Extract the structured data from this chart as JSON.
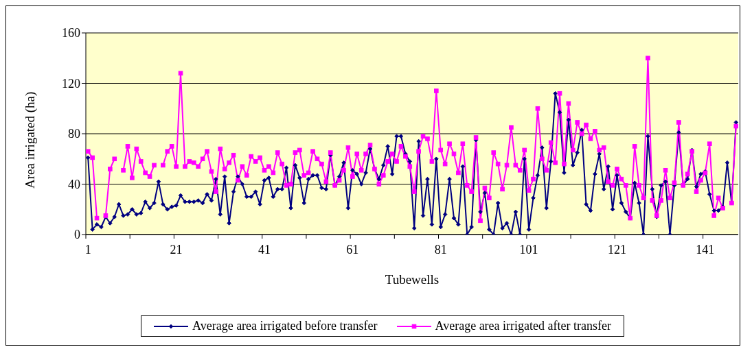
{
  "chart_data": {
    "type": "line",
    "xlabel": "Tubewells",
    "ylabel": "Area irrigated (ha)",
    "x": [
      1,
      2,
      3,
      4,
      5,
      6,
      7,
      8,
      9,
      10,
      11,
      12,
      13,
      14,
      15,
      16,
      17,
      18,
      19,
      20,
      21,
      22,
      23,
      24,
      25,
      26,
      27,
      28,
      29,
      30,
      31,
      32,
      33,
      34,
      35,
      36,
      37,
      38,
      39,
      40,
      41,
      42,
      43,
      44,
      45,
      46,
      47,
      48,
      49,
      50,
      51,
      52,
      53,
      54,
      55,
      56,
      57,
      58,
      59,
      60,
      61,
      62,
      63,
      64,
      65,
      66,
      67,
      68,
      69,
      70,
      71,
      72,
      73,
      74,
      75,
      76,
      77,
      78,
      79,
      80,
      81,
      82,
      83,
      84,
      85,
      86,
      87,
      88,
      89,
      90,
      91,
      92,
      93,
      94,
      95,
      96,
      97,
      98,
      99,
      100,
      101,
      102,
      103,
      104,
      105,
      106,
      107,
      108,
      109,
      110,
      111,
      112,
      113,
      114,
      115,
      116,
      117,
      118,
      119,
      120,
      121,
      122,
      123,
      124,
      125,
      126,
      127,
      128,
      129,
      130,
      131,
      132,
      133,
      134,
      135,
      136,
      137,
      138,
      139,
      140,
      141,
      142,
      143,
      144,
      145,
      146,
      147,
      148
    ],
    "series": [
      {
        "name": "Average area irrigated before transfer",
        "color": "#000080",
        "marker": "diamond",
        "values": [
          61,
          4,
          8,
          6,
          14,
          9,
          14,
          24,
          15,
          16,
          20,
          16,
          17,
          26,
          21,
          25,
          42,
          24,
          20,
          22,
          23,
          31,
          26,
          26,
          26,
          27,
          25,
          32,
          27,
          44,
          16,
          46,
          9,
          34,
          46,
          40,
          30,
          30,
          34,
          24,
          43,
          45,
          30,
          36,
          36,
          53,
          21,
          55,
          45,
          25,
          44,
          47,
          47,
          37,
          36,
          63,
          39,
          46,
          57,
          21,
          51,
          48,
          40,
          49,
          68,
          52,
          44,
          55,
          70,
          48,
          78,
          78,
          64,
          58,
          5,
          74,
          15,
          44,
          8,
          60,
          6,
          16,
          44,
          13,
          8,
          54,
          0,
          6,
          75,
          18,
          33,
          4,
          0,
          25,
          5,
          9,
          0,
          18,
          0,
          60,
          4,
          29,
          47,
          69,
          21,
          58,
          112,
          97,
          49,
          91,
          55,
          65,
          83,
          24,
          19,
          48,
          64,
          36,
          54,
          20,
          47,
          25,
          18,
          13,
          41,
          25,
          0,
          78,
          36,
          14,
          39,
          42,
          0,
          39,
          81,
          39,
          44,
          67,
          38,
          48,
          50,
          32,
          19,
          19,
          22,
          57,
          25,
          89
        ]
      },
      {
        "name": "Average area irrigated after transfer",
        "color": "#ff00ff",
        "marker": "square",
        "values": [
          66,
          61,
          13,
          null,
          15,
          52,
          60,
          null,
          51,
          70,
          45,
          68,
          58,
          49,
          46,
          55,
          null,
          55,
          66,
          70,
          54,
          128,
          54,
          58,
          57,
          54,
          60,
          66,
          50,
          34,
          68,
          52,
          57,
          63,
          43,
          54,
          47,
          62,
          58,
          61,
          51,
          54,
          49,
          65,
          56,
          39,
          40,
          65,
          67,
          47,
          49,
          66,
          60,
          56,
          42,
          65,
          39,
          43,
          51,
          69,
          46,
          64,
          51,
          64,
          71,
          52,
          40,
          47,
          58,
          64,
          58,
          70,
          62,
          54,
          34,
          66,
          78,
          76,
          58,
          114,
          67,
          56,
          72,
          64,
          49,
          72,
          39,
          34,
          77,
          11,
          37,
          29,
          65,
          56,
          36,
          55,
          85,
          55,
          51,
          67,
          35,
          44,
          100,
          60,
          51,
          73,
          57,
          112,
          56,
          104,
          67,
          89,
          80,
          87,
          76,
          82,
          67,
          69,
          42,
          39,
          52,
          44,
          39,
          13,
          70,
          39,
          29,
          140,
          27,
          15,
          27,
          51,
          29,
          41,
          89,
          39,
          48,
          66,
          34,
          43,
          49,
          72,
          15,
          29,
          21,
          null,
          25,
          86
        ]
      }
    ],
    "xlim": [
      0.5,
      148.5
    ],
    "xticks": [
      {
        "value": 0.5,
        "label": null
      },
      1,
      {
        "value": 10.5,
        "label": null
      },
      {
        "value": 20.5,
        "label": null
      },
      21,
      {
        "value": 30.5,
        "label": null
      },
      {
        "value": 40.5,
        "label": null
      },
      41,
      {
        "value": 50.5,
        "label": null
      },
      {
        "value": 60.5,
        "label": null
      },
      61,
      {
        "value": 70.5,
        "label": null
      },
      {
        "value": 80.5,
        "label": null
      },
      81,
      {
        "value": 90.5,
        "label": null
      },
      {
        "value": 100.5,
        "label": null
      },
      101,
      {
        "value": 110.5,
        "label": null
      },
      {
        "value": 120.5,
        "label": null
      },
      121,
      {
        "value": 130.5,
        "label": null
      },
      {
        "value": 140.5,
        "label": null
      },
      141
    ],
    "ylim": [
      0,
      160
    ],
    "yticks": [
      0,
      40,
      80,
      120,
      160
    ],
    "grid": "y",
    "legend": "bottom",
    "line_style": "solid"
  }
}
